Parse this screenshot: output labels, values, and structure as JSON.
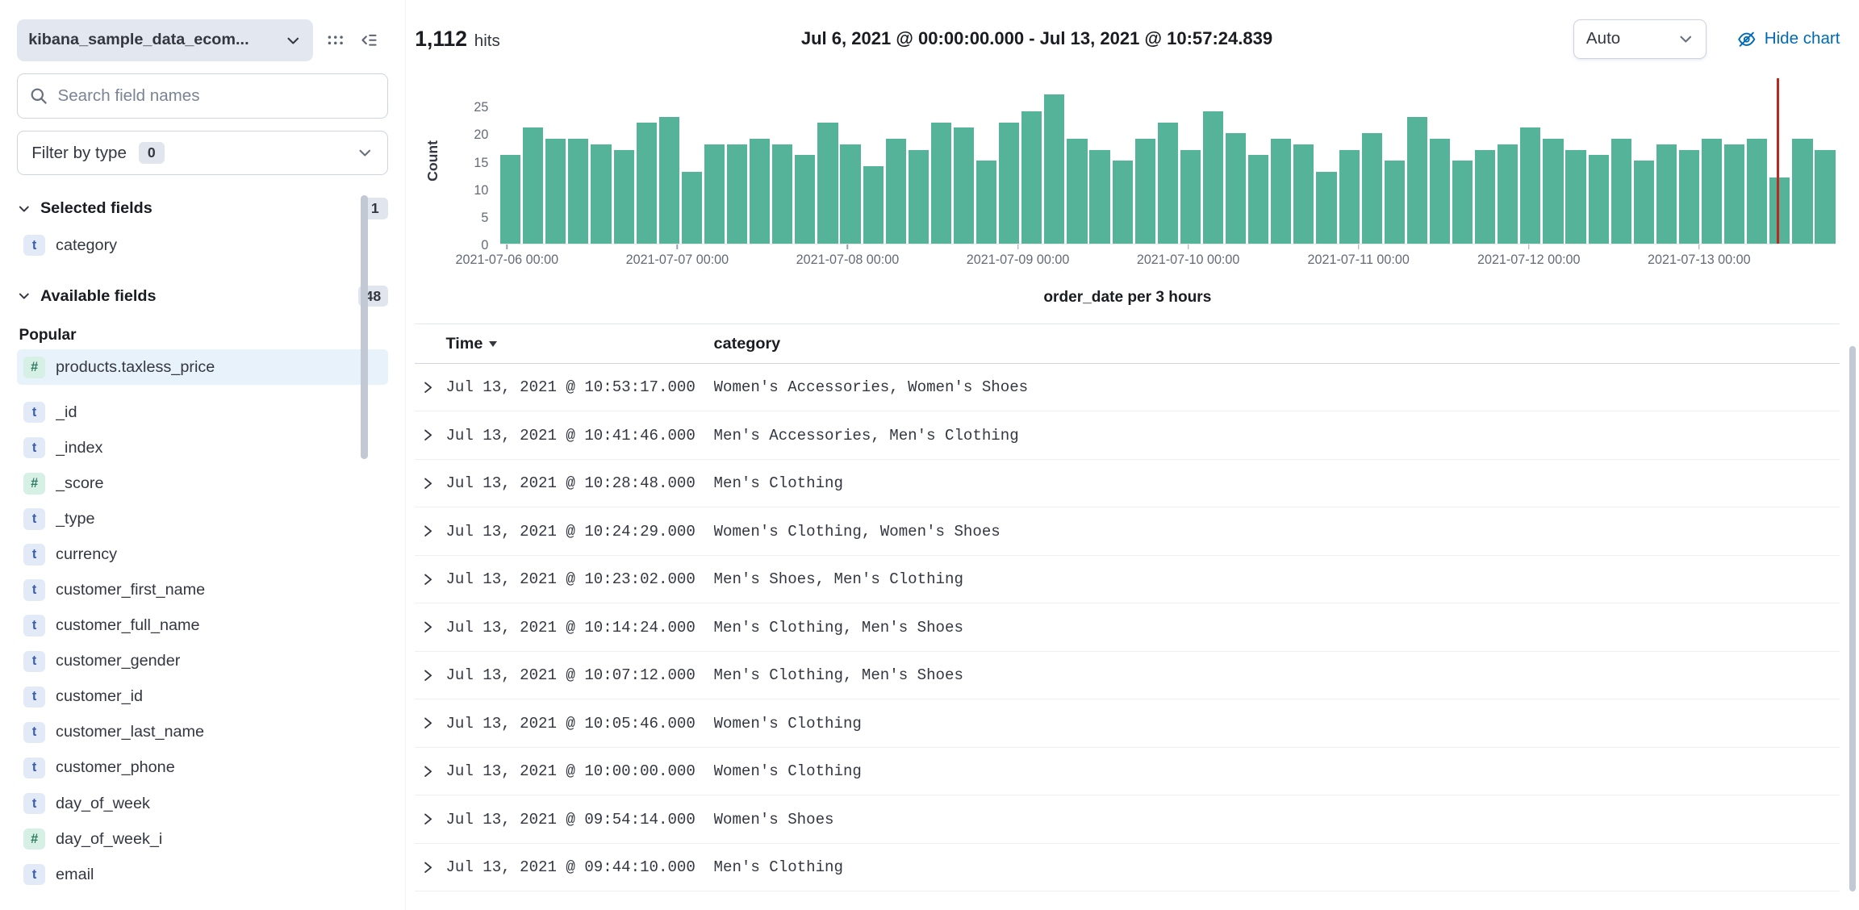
{
  "sidebar": {
    "index_pattern": "kibana_sample_data_ecom...",
    "search_placeholder": "Search field names",
    "filter_by_type": {
      "label": "Filter by type",
      "count": "0"
    },
    "selected": {
      "label": "Selected fields",
      "count": "1",
      "fields": [
        {
          "type": "t",
          "name": "category"
        }
      ]
    },
    "available": {
      "label": "Available fields",
      "count": "48",
      "popular_label": "Popular",
      "popular_fields": [
        {
          "type": "#",
          "name": "products.taxless_price",
          "highlighted": true
        }
      ],
      "fields": [
        {
          "type": "t",
          "name": "_id"
        },
        {
          "type": "t",
          "name": "_index"
        },
        {
          "type": "#",
          "name": "_score"
        },
        {
          "type": "t",
          "name": "_type"
        },
        {
          "type": "t",
          "name": "currency"
        },
        {
          "type": "t",
          "name": "customer_first_name"
        },
        {
          "type": "t",
          "name": "customer_full_name"
        },
        {
          "type": "t",
          "name": "customer_gender"
        },
        {
          "type": "t",
          "name": "customer_id"
        },
        {
          "type": "t",
          "name": "customer_last_name"
        },
        {
          "type": "t",
          "name": "customer_phone"
        },
        {
          "type": "t",
          "name": "day_of_week"
        },
        {
          "type": "#",
          "name": "day_of_week_i"
        },
        {
          "type": "t",
          "name": "email"
        }
      ]
    }
  },
  "header": {
    "hits_count": "1,112",
    "hits_label": "hits",
    "time_range": "Jul 6, 2021 @ 00:00:00.000 - Jul 13, 2021 @ 10:57:24.839",
    "interval": "Auto",
    "hide_chart_label": "Hide chart"
  },
  "chart_data": {
    "type": "bar",
    "title": "order_date per 3 hours",
    "ylabel": "Count",
    "yticks": [
      0,
      5,
      10,
      15,
      20,
      25
    ],
    "ylim": [
      0,
      30
    ],
    "bucket_interval": "3 hours",
    "xticks": [
      "2021-07-06 00:00",
      "2021-07-07 00:00",
      "2021-07-08 00:00",
      "2021-07-09 00:00",
      "2021-07-10 00:00",
      "2021-07-11 00:00",
      "2021-07-12 00:00",
      "2021-07-13 00:00"
    ],
    "values": [
      16,
      21,
      19,
      19,
      18,
      17,
      22,
      23,
      13,
      18,
      18,
      19,
      18,
      16,
      22,
      18,
      14,
      19,
      17,
      22,
      21,
      15,
      22,
      24,
      27,
      19,
      17,
      15,
      19,
      22,
      17,
      24,
      20,
      16,
      19,
      18,
      13,
      17,
      20,
      15,
      23,
      19,
      15,
      17,
      18,
      21,
      19,
      17,
      16,
      19,
      15,
      18,
      17,
      19,
      18,
      19,
      12,
      19,
      17
    ],
    "bar_color": "#54b399",
    "time_marker_color": "#bd271e",
    "time_marker_position_pct": 95.6,
    "grid": false,
    "legend": false
  },
  "table": {
    "columns": [
      "Time",
      "category"
    ],
    "sort": "Time descending",
    "rows": [
      {
        "time": "Jul 13, 2021 @ 10:53:17.000",
        "category": "Women's Accessories, Women's Shoes"
      },
      {
        "time": "Jul 13, 2021 @ 10:41:46.000",
        "category": "Men's Accessories, Men's Clothing"
      },
      {
        "time": "Jul 13, 2021 @ 10:28:48.000",
        "category": "Men's Clothing"
      },
      {
        "time": "Jul 13, 2021 @ 10:24:29.000",
        "category": "Women's Clothing, Women's Shoes"
      },
      {
        "time": "Jul 13, 2021 @ 10:23:02.000",
        "category": "Men's Shoes, Men's Clothing"
      },
      {
        "time": "Jul 13, 2021 @ 10:14:24.000",
        "category": "Men's Clothing, Men's Shoes"
      },
      {
        "time": "Jul 13, 2021 @ 10:07:12.000",
        "category": "Men's Clothing, Men's Shoes"
      },
      {
        "time": "Jul 13, 2021 @ 10:05:46.000",
        "category": "Women's Clothing"
      },
      {
        "time": "Jul 13, 2021 @ 10:00:00.000",
        "category": "Women's Clothing"
      },
      {
        "time": "Jul 13, 2021 @ 09:54:14.000",
        "category": "Women's Shoes"
      },
      {
        "time": "Jul 13, 2021 @ 09:44:10.000",
        "category": "Men's Clothing"
      }
    ]
  },
  "colors": {
    "accent": "#006bb4",
    "bar": "#54b399",
    "danger": "#bd271e"
  }
}
